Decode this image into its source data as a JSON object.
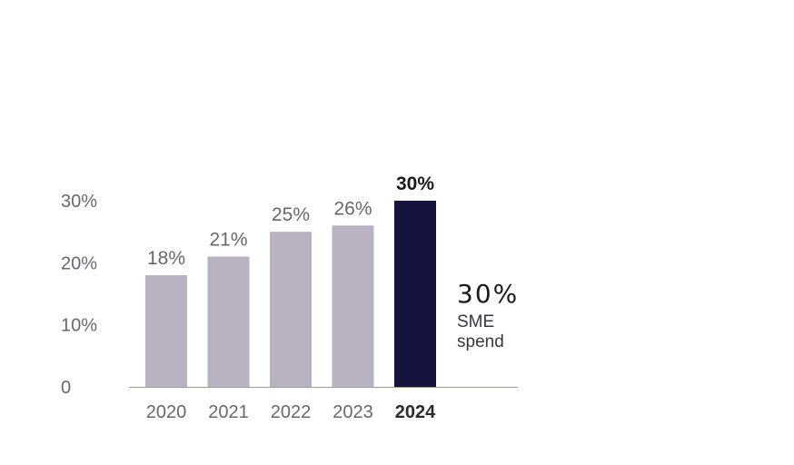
{
  "chart_data": {
    "type": "bar",
    "categories": [
      "2020",
      "2021",
      "2022",
      "2023",
      "2024"
    ],
    "values": [
      18,
      21,
      25,
      26,
      30
    ],
    "value_labels": [
      "18%",
      "21%",
      "25%",
      "26%",
      "30%"
    ],
    "highlight_index": 4,
    "yticks": [
      {
        "value": 0,
        "label": "0"
      },
      {
        "value": 10,
        "label": "10%"
      },
      {
        "value": 20,
        "label": "20%"
      },
      {
        "value": 30,
        "label": "30%"
      }
    ],
    "ylim": [
      0,
      30
    ],
    "colors": {
      "bar": "#b9b2c3",
      "highlight_bar": "#15143f",
      "baseline": "#a39a8e"
    },
    "title": "",
    "xlabel": "",
    "ylabel": ""
  },
  "callout": {
    "value": "30%",
    "text": "SME spend"
  }
}
